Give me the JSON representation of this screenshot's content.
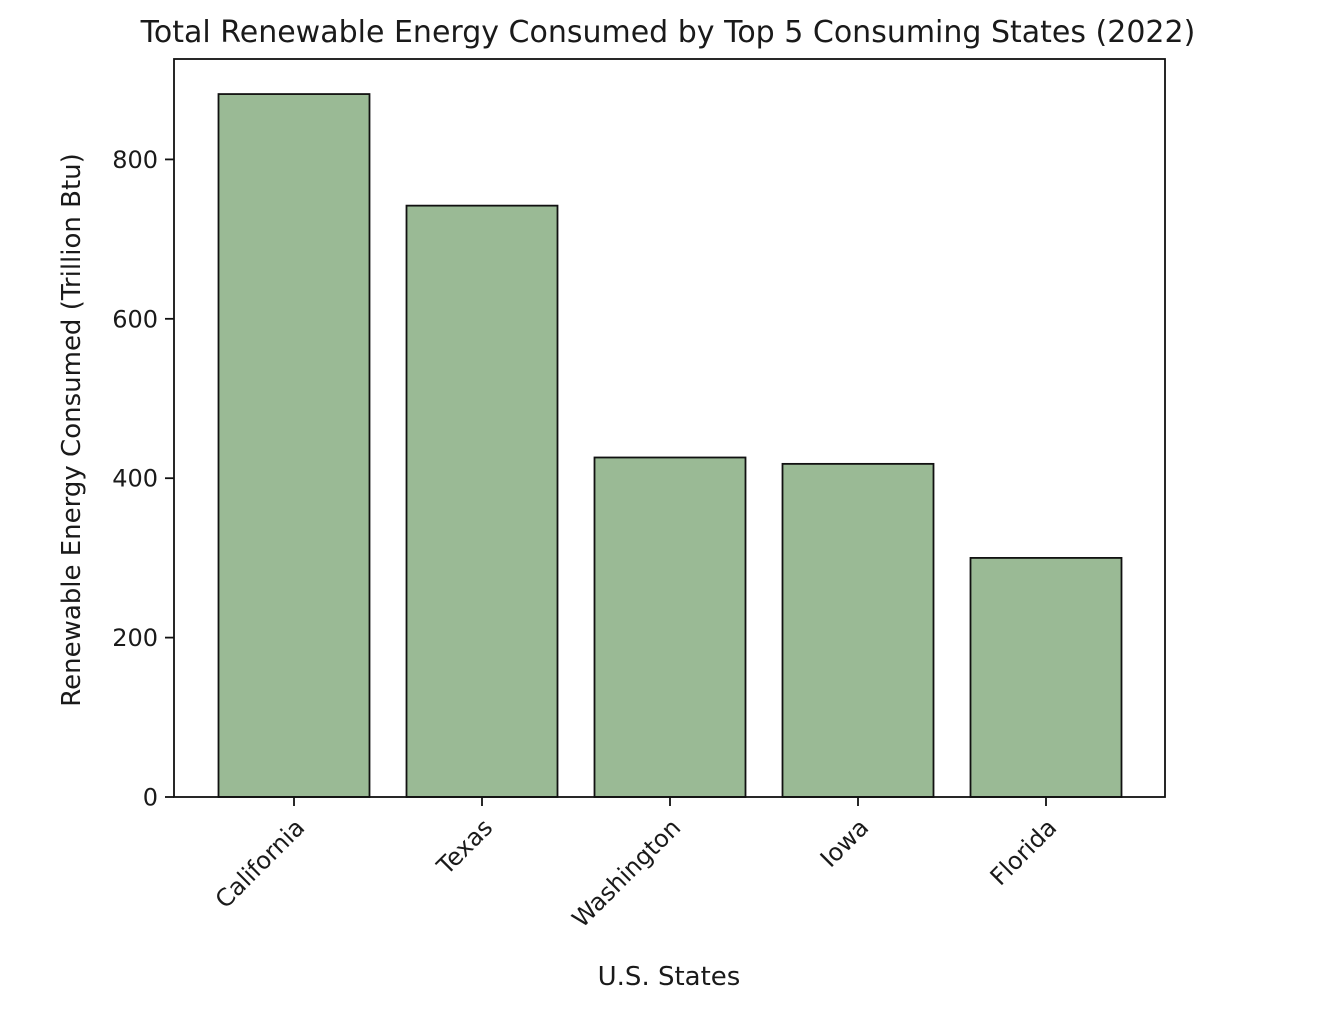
{
  "colors": {
    "bar_fill": "#9aba95",
    "bar_edge": "#111111",
    "axis": "#111111",
    "text": "#1a1a1a",
    "background": "#ffffff"
  },
  "chart_data": {
    "type": "bar",
    "title": "Total Renewable Energy Consumed by Top 5 Consuming States (2022)",
    "xlabel": "U.S. States",
    "ylabel": "Renewable Energy Consumed (Trillion Btu)",
    "categories": [
      "California",
      "Texas",
      "Washington",
      "Iowa",
      "Florida"
    ],
    "values": [
      882,
      742,
      426,
      418,
      300
    ],
    "ylim": [
      0,
      926
    ],
    "yticks": [
      0,
      200,
      400,
      600,
      800
    ],
    "ytick_labels": [
      "0",
      "200",
      "400",
      "600",
      "800"
    ],
    "grid": false,
    "legend": "none",
    "xtick_rotation": -45
  }
}
